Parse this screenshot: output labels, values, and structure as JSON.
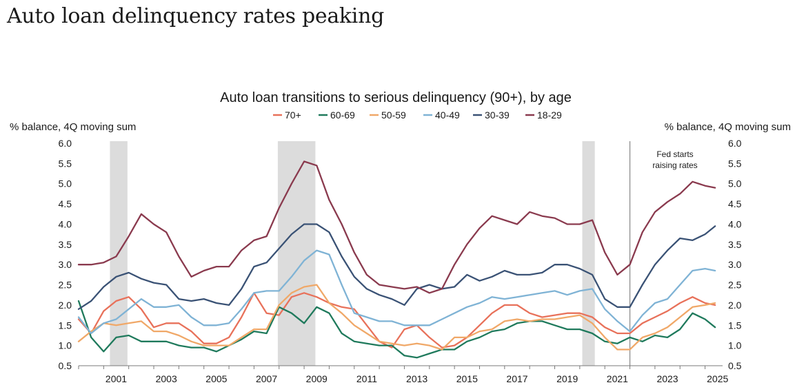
{
  "page_title": "Auto loan delinquency rates peaking",
  "chart_data": {
    "type": "line",
    "title": "Auto loan transitions to serious delinquency (90+), by age",
    "ylabel_left": "% balance, 4Q moving sum",
    "ylabel_right": "% balance, 4Q moving sum",
    "ylim": [
      0.5,
      6.0
    ],
    "xlim": [
      2000.0,
      2025.7
    ],
    "yticks": [
      "0.5",
      "1.0",
      "1.5",
      "2.0",
      "2.5",
      "3.0",
      "3.5",
      "4.0",
      "4.5",
      "5.0",
      "5.5",
      "6.0"
    ],
    "xticks": [
      "2001",
      "2003",
      "2005",
      "2007",
      "2009",
      "2011",
      "2013",
      "2015",
      "2017",
      "2019",
      "2021",
      "2023",
      "2025"
    ],
    "recessions": [
      [
        2001.25,
        2001.95
      ],
      [
        2007.95,
        2009.45
      ],
      [
        2020.1,
        2020.6
      ]
    ],
    "annotation": {
      "lines": [
        "Fed starts",
        "raising rates"
      ],
      "x": 2022.0
    },
    "series": [
      {
        "name": "70+",
        "color": "#e8715a",
        "x": [
          2000.0,
          2000.5,
          2001.0,
          2001.5,
          2002.0,
          2002.5,
          2003.0,
          2003.5,
          2004.0,
          2004.5,
          2005.0,
          2005.5,
          2006.0,
          2006.5,
          2007.0,
          2007.5,
          2008.0,
          2008.5,
          2009.0,
          2009.5,
          2010.0,
          2010.5,
          2011.0,
          2011.5,
          2012.0,
          2012.5,
          2013.0,
          2013.5,
          2014.0,
          2014.5,
          2015.0,
          2015.5,
          2016.0,
          2016.5,
          2017.0,
          2017.5,
          2018.0,
          2018.5,
          2019.0,
          2019.5,
          2020.0,
          2020.5,
          2021.0,
          2021.5,
          2022.0,
          2022.5,
          2023.0,
          2023.5,
          2024.0,
          2024.5,
          2025.0,
          2025.4
        ],
        "values": [
          1.65,
          1.3,
          1.85,
          2.1,
          2.2,
          1.9,
          1.45,
          1.55,
          1.55,
          1.35,
          1.05,
          1.05,
          1.2,
          1.7,
          2.3,
          1.8,
          1.75,
          2.2,
          2.3,
          2.2,
          2.05,
          1.95,
          1.9,
          1.5,
          1.1,
          0.95,
          1.4,
          1.5,
          1.2,
          0.95,
          1.0,
          1.2,
          1.5,
          1.8,
          2.0,
          2.0,
          1.8,
          1.7,
          1.75,
          1.8,
          1.8,
          1.7,
          1.45,
          1.3,
          1.3,
          1.55,
          1.7,
          1.85,
          2.05,
          2.2,
          2.05,
          2.0
        ]
      },
      {
        "name": "60-69",
        "color": "#1f7a5c",
        "x": [
          2000.0,
          2000.5,
          2001.0,
          2001.5,
          2002.0,
          2002.5,
          2003.0,
          2003.5,
          2004.0,
          2004.5,
          2005.0,
          2005.5,
          2006.0,
          2006.5,
          2007.0,
          2007.5,
          2008.0,
          2008.5,
          2009.0,
          2009.5,
          2010.0,
          2010.5,
          2011.0,
          2011.5,
          2012.0,
          2012.5,
          2013.0,
          2013.5,
          2014.0,
          2014.5,
          2015.0,
          2015.5,
          2016.0,
          2016.5,
          2017.0,
          2017.5,
          2018.0,
          2018.5,
          2019.0,
          2019.5,
          2020.0,
          2020.5,
          2021.0,
          2021.5,
          2022.0,
          2022.5,
          2023.0,
          2023.5,
          2024.0,
          2024.5,
          2025.0,
          2025.4
        ],
        "values": [
          2.1,
          1.2,
          0.85,
          1.2,
          1.25,
          1.1,
          1.1,
          1.1,
          1.0,
          0.95,
          0.95,
          0.85,
          1.0,
          1.15,
          1.35,
          1.3,
          1.95,
          1.8,
          1.55,
          1.95,
          1.8,
          1.3,
          1.1,
          1.05,
          1.0,
          1.0,
          0.75,
          0.7,
          0.8,
          0.9,
          0.9,
          1.1,
          1.2,
          1.35,
          1.4,
          1.55,
          1.6,
          1.6,
          1.5,
          1.4,
          1.4,
          1.3,
          1.1,
          1.05,
          1.2,
          1.1,
          1.25,
          1.2,
          1.4,
          1.8,
          1.65,
          1.45
        ]
      },
      {
        "name": "50-59",
        "color": "#f0a868",
        "x": [
          2000.0,
          2000.5,
          2001.0,
          2001.5,
          2002.0,
          2002.5,
          2003.0,
          2003.5,
          2004.0,
          2004.5,
          2005.0,
          2005.5,
          2006.0,
          2006.5,
          2007.0,
          2007.5,
          2008.0,
          2008.5,
          2009.0,
          2009.5,
          2010.0,
          2010.5,
          2011.0,
          2011.5,
          2012.0,
          2012.5,
          2013.0,
          2013.5,
          2014.0,
          2014.5,
          2015.0,
          2015.5,
          2016.0,
          2016.5,
          2017.0,
          2017.5,
          2018.0,
          2018.5,
          2019.0,
          2019.5,
          2020.0,
          2020.5,
          2021.0,
          2021.5,
          2022.0,
          2022.5,
          2023.0,
          2023.5,
          2024.0,
          2024.5,
          2025.0,
          2025.4
        ],
        "values": [
          1.1,
          1.35,
          1.55,
          1.5,
          1.55,
          1.6,
          1.35,
          1.35,
          1.25,
          1.1,
          1.0,
          1.0,
          1.0,
          1.2,
          1.4,
          1.4,
          2.0,
          2.3,
          2.45,
          2.5,
          2.05,
          1.8,
          1.5,
          1.3,
          1.1,
          1.05,
          1.0,
          1.05,
          1.0,
          0.9,
          1.2,
          1.2,
          1.35,
          1.4,
          1.6,
          1.65,
          1.6,
          1.65,
          1.65,
          1.7,
          1.75,
          1.55,
          1.2,
          0.9,
          0.9,
          1.2,
          1.3,
          1.45,
          1.7,
          1.95,
          2.0,
          2.05
        ]
      },
      {
        "name": "40-49",
        "color": "#7fb3d5",
        "x": [
          2000.0,
          2000.5,
          2001.0,
          2001.5,
          2002.0,
          2002.5,
          2003.0,
          2003.5,
          2004.0,
          2004.5,
          2005.0,
          2005.5,
          2006.0,
          2006.5,
          2007.0,
          2007.5,
          2008.0,
          2008.5,
          2009.0,
          2009.5,
          2010.0,
          2010.5,
          2011.0,
          2011.5,
          2012.0,
          2012.5,
          2013.0,
          2013.5,
          2014.0,
          2014.5,
          2015.0,
          2015.5,
          2016.0,
          2016.5,
          2017.0,
          2017.5,
          2018.0,
          2018.5,
          2019.0,
          2019.5,
          2020.0,
          2020.5,
          2021.0,
          2021.5,
          2022.0,
          2022.5,
          2023.0,
          2023.5,
          2024.0,
          2024.5,
          2025.0,
          2025.4
        ],
        "values": [
          1.7,
          1.3,
          1.55,
          1.65,
          1.9,
          2.15,
          1.95,
          1.95,
          2.0,
          1.7,
          1.5,
          1.5,
          1.55,
          1.9,
          2.3,
          2.35,
          2.35,
          2.7,
          3.1,
          3.35,
          3.25,
          2.5,
          1.8,
          1.7,
          1.6,
          1.6,
          1.5,
          1.5,
          1.5,
          1.65,
          1.8,
          1.95,
          2.05,
          2.2,
          2.15,
          2.2,
          2.25,
          2.3,
          2.35,
          2.25,
          2.35,
          2.4,
          1.9,
          1.6,
          1.35,
          1.75,
          2.05,
          2.15,
          2.5,
          2.85,
          2.9,
          2.85
        ]
      },
      {
        "name": "30-39",
        "color": "#3a5275",
        "x": [
          2000.0,
          2000.5,
          2001.0,
          2001.5,
          2002.0,
          2002.5,
          2003.0,
          2003.5,
          2004.0,
          2004.5,
          2005.0,
          2005.5,
          2006.0,
          2006.5,
          2007.0,
          2007.5,
          2008.0,
          2008.5,
          2009.0,
          2009.5,
          2010.0,
          2010.5,
          2011.0,
          2011.5,
          2012.0,
          2012.5,
          2013.0,
          2013.5,
          2014.0,
          2014.5,
          2015.0,
          2015.5,
          2016.0,
          2016.5,
          2017.0,
          2017.5,
          2018.0,
          2018.5,
          2019.0,
          2019.5,
          2020.0,
          2020.5,
          2021.0,
          2021.5,
          2022.0,
          2022.5,
          2023.0,
          2023.5,
          2024.0,
          2024.5,
          2025.0,
          2025.4
        ],
        "values": [
          1.9,
          2.1,
          2.45,
          2.7,
          2.8,
          2.65,
          2.55,
          2.5,
          2.15,
          2.1,
          2.15,
          2.05,
          2.0,
          2.4,
          2.95,
          3.05,
          3.4,
          3.75,
          4.0,
          4.0,
          3.8,
          3.2,
          2.7,
          2.4,
          2.25,
          2.15,
          2.0,
          2.4,
          2.5,
          2.4,
          2.45,
          2.75,
          2.6,
          2.7,
          2.85,
          2.75,
          2.75,
          2.8,
          3.0,
          3.0,
          2.9,
          2.75,
          2.15,
          1.95,
          1.95,
          2.5,
          3.0,
          3.35,
          3.65,
          3.6,
          3.75,
          3.95
        ]
      },
      {
        "name": "18-29",
        "color": "#8a3a4e",
        "x": [
          2000.0,
          2000.5,
          2001.0,
          2001.5,
          2002.0,
          2002.5,
          2003.0,
          2003.5,
          2004.0,
          2004.5,
          2005.0,
          2005.5,
          2006.0,
          2006.5,
          2007.0,
          2007.5,
          2008.0,
          2008.5,
          2009.0,
          2009.5,
          2010.0,
          2010.5,
          2011.0,
          2011.5,
          2012.0,
          2012.5,
          2013.0,
          2013.5,
          2014.0,
          2014.5,
          2015.0,
          2015.5,
          2016.0,
          2016.5,
          2017.0,
          2017.5,
          2018.0,
          2018.5,
          2019.0,
          2019.5,
          2020.0,
          2020.5,
          2021.0,
          2021.5,
          2022.0,
          2022.5,
          2023.0,
          2023.5,
          2024.0,
          2024.5,
          2025.0,
          2025.4
        ],
        "values": [
          3.0,
          3.0,
          3.05,
          3.2,
          3.7,
          4.25,
          4.0,
          3.8,
          3.2,
          2.7,
          2.85,
          2.95,
          2.95,
          3.35,
          3.6,
          3.7,
          4.4,
          5.0,
          5.55,
          5.45,
          4.6,
          4.0,
          3.3,
          2.75,
          2.5,
          2.45,
          2.4,
          2.45,
          2.3,
          2.4,
          3.0,
          3.5,
          3.9,
          4.2,
          4.1,
          4.0,
          4.3,
          4.2,
          4.15,
          4.0,
          4.0,
          4.1,
          3.3,
          2.75,
          3.0,
          3.8,
          4.3,
          4.55,
          4.75,
          5.05,
          4.95,
          4.9
        ]
      }
    ]
  }
}
